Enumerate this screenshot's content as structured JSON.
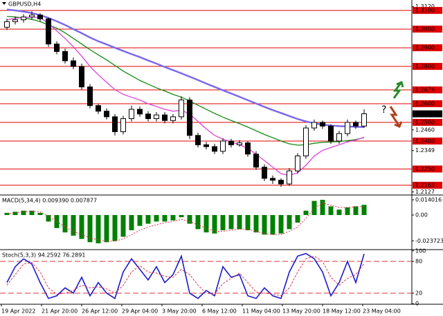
{
  "chart_data": [
    {
      "type": "candlestick",
      "title": "GBPUSD,H4",
      "open": [
        1.301,
        1.304,
        1.305,
        1.3065,
        1.3075,
        1.3055,
        1.292,
        1.288,
        1.283,
        1.28,
        1.269,
        1.259,
        1.256,
        1.253,
        1.245,
        1.252,
        1.257,
        1.2545,
        1.252,
        1.254,
        1.251,
        1.253,
        1.262,
        1.243,
        1.238,
        1.237,
        1.2345,
        1.24,
        1.238,
        1.239,
        1.233,
        1.226,
        1.22,
        1.219,
        1.217,
        1.224,
        1.232,
        1.247,
        1.25,
        1.248,
        1.24,
        1.244,
        1.25,
        1.248
      ],
      "high": [
        1.3055,
        1.3068,
        1.308,
        1.3095,
        1.3085,
        1.3062,
        1.2935,
        1.2895,
        1.2848,
        1.2815,
        1.2705,
        1.26,
        1.2575,
        1.2545,
        1.2535,
        1.259,
        1.2585,
        1.256,
        1.2555,
        1.2555,
        1.2545,
        1.264,
        1.2635,
        1.2445,
        1.2395,
        1.2385,
        1.2415,
        1.2412,
        1.2405,
        1.24,
        1.2345,
        1.2275,
        1.2215,
        1.22,
        1.2255,
        1.2335,
        1.2485,
        1.2515,
        1.251,
        1.249,
        1.2455,
        1.2515,
        1.251,
        1.257
      ],
      "low": [
        1.2995,
        1.3025,
        1.3035,
        1.305,
        1.304,
        1.2905,
        1.2865,
        1.2815,
        1.2785,
        1.2675,
        1.2575,
        1.2545,
        1.2515,
        1.243,
        1.2435,
        1.2505,
        1.253,
        1.2505,
        1.2505,
        1.2495,
        1.2495,
        1.2515,
        1.241,
        1.2365,
        1.2355,
        1.233,
        1.233,
        1.2365,
        1.237,
        1.2315,
        1.2245,
        1.2185,
        1.217,
        1.2155,
        1.216,
        1.2225,
        1.2305,
        1.2455,
        1.2465,
        1.2385,
        1.2385,
        1.2425,
        1.2465,
        1.247
      ],
      "close": [
        1.304,
        1.305,
        1.3065,
        1.3075,
        1.3055,
        1.292,
        1.288,
        1.283,
        1.28,
        1.269,
        1.259,
        1.256,
        1.253,
        1.245,
        1.252,
        1.257,
        1.2545,
        1.252,
        1.254,
        1.251,
        1.253,
        1.262,
        1.243,
        1.238,
        1.237,
        1.2345,
        1.24,
        1.238,
        1.239,
        1.233,
        1.226,
        1.22,
        1.219,
        1.217,
        1.224,
        1.232,
        1.247,
        1.25,
        1.248,
        1.24,
        1.244,
        1.25,
        1.248,
        1.2546
      ],
      "series": [
        {
          "color": "#7b68ee",
          "values": [
            1.3105,
            1.31,
            1.3094,
            1.3086,
            1.3075,
            1.306,
            1.3042,
            1.3022,
            1.3,
            1.2978,
            1.2955,
            1.2935,
            1.2918,
            1.29,
            1.2883,
            1.2866,
            1.285,
            1.2832,
            1.2815,
            1.2797,
            1.278,
            1.2763,
            1.2745,
            1.2727,
            1.2708,
            1.269,
            1.2672,
            1.2655,
            1.2637,
            1.2619,
            1.2601,
            1.2583,
            1.2566,
            1.255,
            1.2534,
            1.2518,
            1.2505,
            1.2495,
            1.2488,
            1.2483,
            1.248,
            1.2478,
            1.2476,
            1.2475
          ]
        },
        {
          "color": "#138a13",
          "values": [
            1.3068,
            1.3065,
            1.306,
            1.3052,
            1.304,
            1.3022,
            1.3005,
            1.298,
            1.295,
            1.292,
            1.289,
            1.2862,
            1.2835,
            1.2805,
            1.2775,
            1.275,
            1.2725,
            1.2705,
            1.2685,
            1.2668,
            1.265,
            1.2635,
            1.2615,
            1.2592,
            1.257,
            1.2548,
            1.2528,
            1.251,
            1.2493,
            1.2475,
            1.2455,
            1.2435,
            1.2418,
            1.24,
            1.2385,
            1.2378,
            1.238,
            1.2388,
            1.2393,
            1.2395,
            1.2397,
            1.2402,
            1.2408,
            1.2418
          ]
        },
        {
          "color": "#e040e0",
          "values": [
            1.305,
            1.3058,
            1.3062,
            1.3065,
            1.3062,
            1.303,
            1.299,
            1.295,
            1.2905,
            1.2855,
            1.28,
            1.2755,
            1.2715,
            1.2675,
            1.265,
            1.2635,
            1.262,
            1.26,
            1.2585,
            1.257,
            1.256,
            1.2565,
            1.2545,
            1.2505,
            1.2465,
            1.243,
            1.241,
            1.2395,
            1.238,
            1.236,
            1.233,
            1.2295,
            1.226,
            1.2225,
            1.2215,
            1.223,
            1.227,
            1.232,
            1.235,
            1.2365,
            1.238,
            1.2395,
            1.2405,
            1.242
          ]
        }
      ],
      "ylim": [
        1.2107,
        1.3156
      ],
      "yticks": [
        {
          "value": 1.312,
          "label": "1.3120"
        },
        {
          "value": 1.246,
          "label": "1.2460"
        },
        1.2349,
        1.2127
      ],
      "levels": [
        {
          "value": 1.31,
          "label": "1.3100"
        },
        {
          "value": 1.3,
          "label": "1.3000"
        },
        {
          "value": 1.29,
          "label": "1.2900"
        },
        {
          "value": 1.28,
          "label": "1.2800"
        },
        1.2674,
        {
          "value": 1.26,
          "label": "1.2600"
        },
        {
          "value": 1.25,
          "label": "1.2500"
        },
        {
          "value": 1.24,
          "label": "1.2400"
        },
        {
          "value": 1.225,
          "label": "1.2250"
        },
        1.2163
      ],
      "level_color": "#e00000",
      "current_price": 1.25458,
      "annotation": "?"
    },
    {
      "type": "macd",
      "title": "MACD(5,34,4) 0.009390 0.007877",
      "color": "#008000",
      "values": [
        0.002,
        0.003,
        0.004,
        0.004,
        0.002,
        -0.006,
        -0.012,
        -0.016,
        -0.019,
        -0.022,
        -0.025,
        -0.026,
        -0.025,
        -0.024,
        -0.02,
        -0.014,
        -0.01,
        -0.008,
        -0.006,
        -0.006,
        -0.005,
        -0.002,
        -0.008,
        -0.013,
        -0.016,
        -0.017,
        -0.014,
        -0.013,
        -0.013,
        -0.014,
        -0.016,
        -0.018,
        -0.018,
        -0.017,
        -0.013,
        -0.007,
        0.004,
        0.013,
        0.014,
        0.008,
        0.005,
        0.007,
        0.008,
        0.00939
      ],
      "signal": {
        "color": "#e03050",
        "values": [
          0.001,
          0.002,
          0.003,
          0.0035,
          0.003,
          -0.001,
          -0.006,
          -0.011,
          -0.015,
          -0.018,
          -0.021,
          -0.023,
          -0.024,
          -0.024,
          -0.022,
          -0.018,
          -0.014,
          -0.011,
          -0.009,
          -0.007,
          -0.006,
          -0.004,
          -0.006,
          -0.009,
          -0.012,
          -0.015,
          -0.015,
          -0.014,
          -0.013,
          -0.013,
          -0.015,
          -0.017,
          -0.018,
          -0.018,
          -0.015,
          -0.011,
          -0.003,
          0.006,
          0.011,
          0.009,
          0.007,
          0.007,
          0.0075,
          0.007877
        ]
      },
      "ylim": [
        -0.0312,
        0.0178
      ],
      "yticks": [
        0.014016,
        {
          "value": 0,
          "label": "0.00"
        },
        -0.023723
      ]
    },
    {
      "type": "stochastic",
      "title": "Stoch(5,3,3) 94.2592 76.2891",
      "series": [
        {
          "color": "#1a1acc",
          "values": [
            40,
            70,
            85,
            75,
            40,
            10,
            15,
            30,
            20,
            50,
            15,
            40,
            20,
            10,
            60,
            85,
            65,
            45,
            70,
            40,
            55,
            90,
            20,
            10,
            25,
            15,
            70,
            50,
            55,
            15,
            10,
            30,
            15,
            10,
            60,
            90,
            95,
            85,
            60,
            15,
            40,
            80,
            40,
            94.2592
          ]
        },
        {
          "color": "#e03050",
          "values": [
            35,
            55,
            75,
            78,
            60,
            30,
            18,
            20,
            25,
            35,
            30,
            32,
            28,
            20,
            35,
            60,
            72,
            60,
            58,
            52,
            50,
            65,
            55,
            35,
            20,
            18,
            38,
            48,
            58,
            40,
            22,
            20,
            18,
            15,
            30,
            60,
            85,
            90,
            80,
            50,
            35,
            48,
            55,
            76.2891
          ]
        }
      ],
      "ylim": [
        -1,
        101
      ],
      "yticks": [
        100,
        80,
        20,
        0
      ],
      "xtick_labels": [
        "19 Apr 2022",
        "21 Apr 20:00",
        "26 Apr 12:00",
        "29 Apr 04:00",
        "3 May 20:00",
        "6 May 12:00",
        "11 May 04:00",
        "13 May 20:00",
        "18 May 12:00",
        "23 May 04:00"
      ]
    }
  ]
}
